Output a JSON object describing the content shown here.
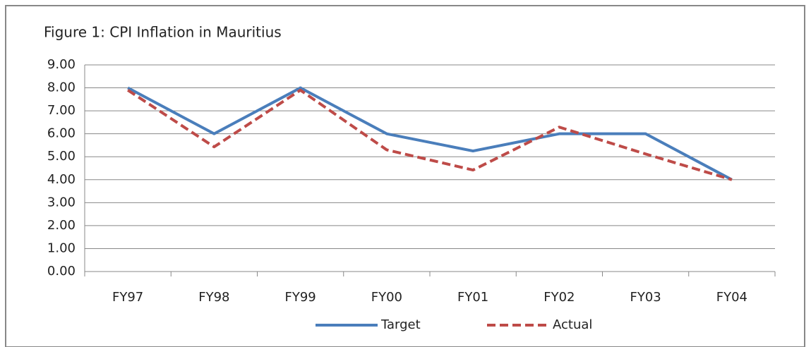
{
  "chart_data": {
    "type": "line",
    "title": "Figure 1:  CPI  Inflation in Mauritius",
    "categories": [
      "FY97",
      "FY98",
      "FY99",
      "FY00",
      "FY01",
      "FY02",
      "FY03",
      "FY04"
    ],
    "series": [
      {
        "name": "Target",
        "color": "#4a7ebb",
        "dash": false,
        "values": [
          8.0,
          6.0,
          8.0,
          6.0,
          5.25,
          6.0,
          6.0,
          4.0
        ]
      },
      {
        "name": "Actual",
        "color": "#be4b48",
        "dash": true,
        "values": [
          7.9,
          5.43,
          7.9,
          5.3,
          4.42,
          6.29,
          5.12,
          4.0
        ]
      }
    ],
    "ylim": [
      0,
      9
    ],
    "yticks": [
      {
        "value": 0,
        "label": "0.00"
      },
      {
        "value": 1,
        "label": "1.00"
      },
      {
        "value": 2,
        "label": "2.00"
      },
      {
        "value": 3,
        "label": "3.00"
      },
      {
        "value": 4,
        "label": "4.00"
      },
      {
        "value": 5,
        "label": "5.00"
      },
      {
        "value": 6,
        "label": "6.00"
      },
      {
        "value": 7,
        "label": "7.00"
      },
      {
        "value": 8,
        "label": "8.00"
      },
      {
        "value": 9,
        "label": "9.00"
      }
    ],
    "grid": true,
    "legend": "bottom"
  }
}
